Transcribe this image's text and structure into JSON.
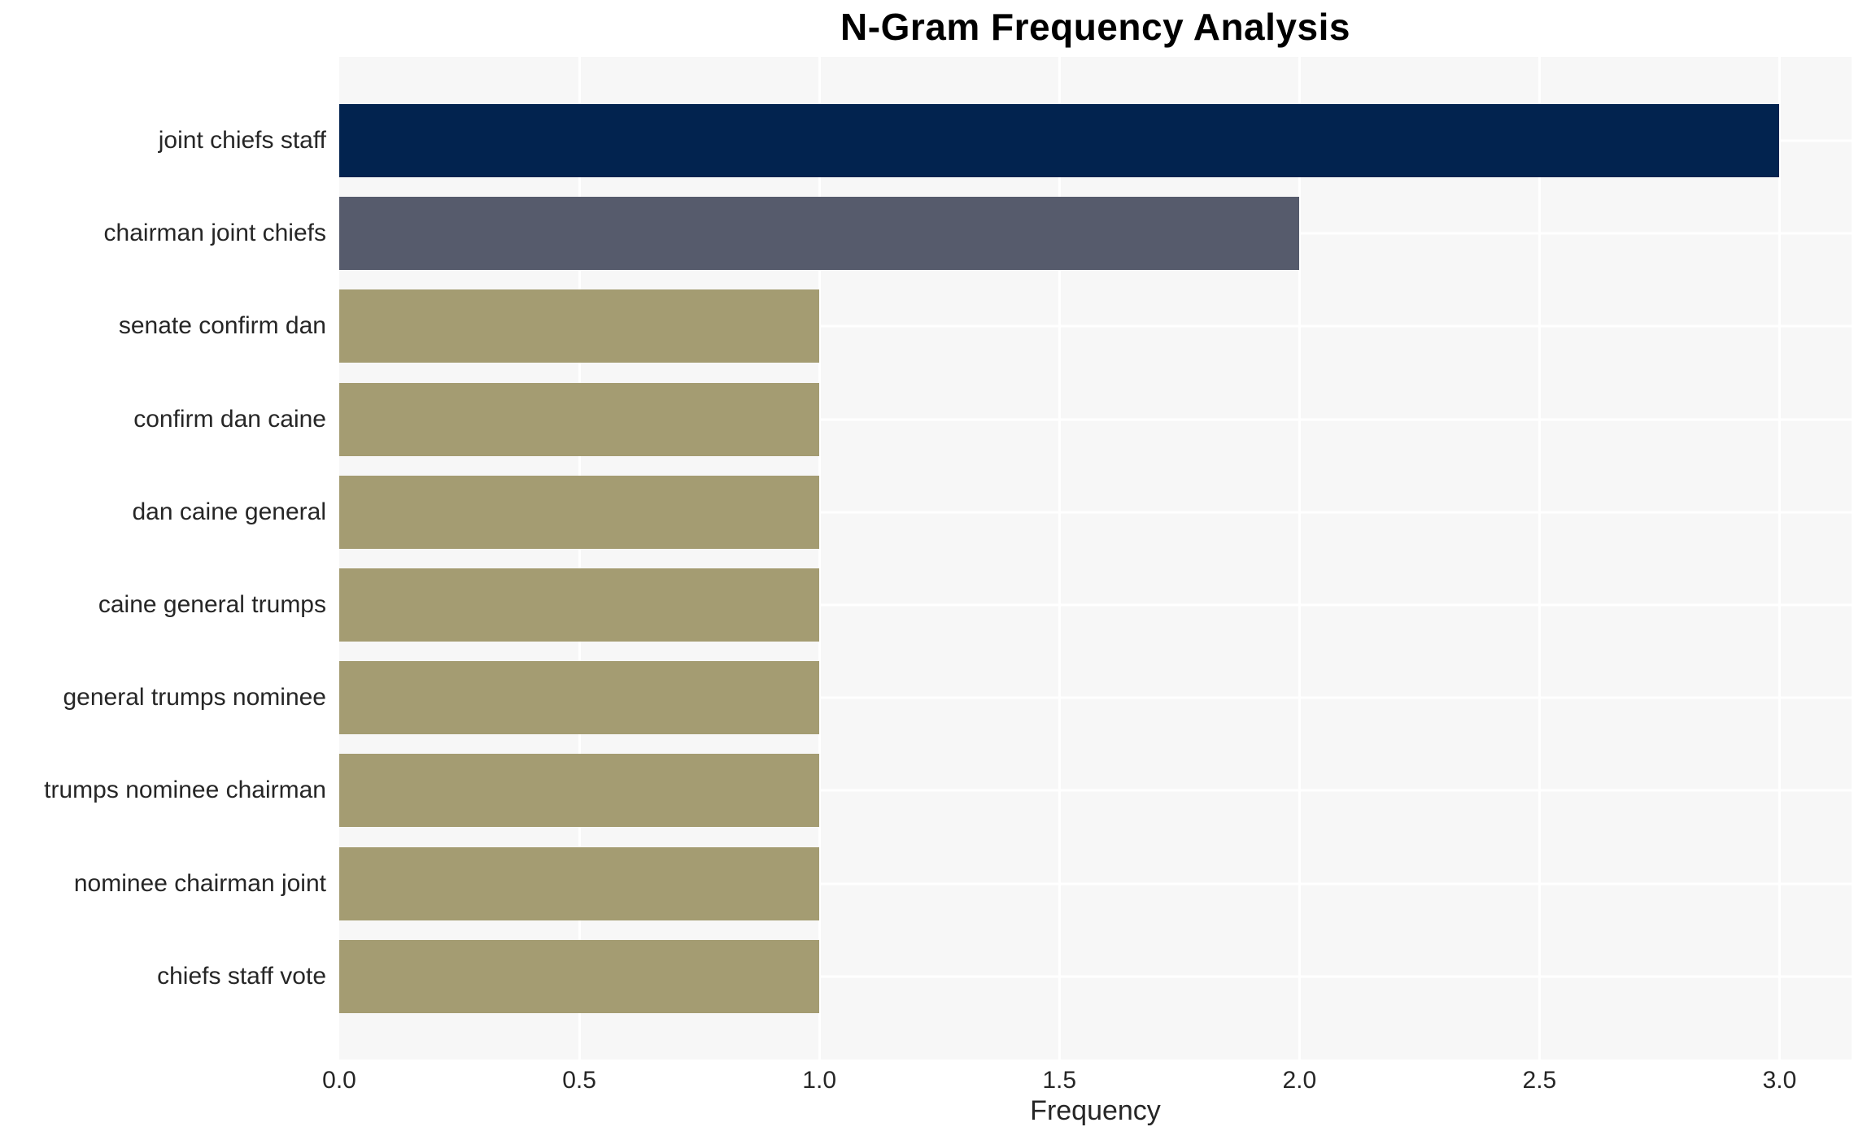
{
  "chart_data": {
    "type": "bar",
    "orientation": "horizontal",
    "title": "N-Gram Frequency Analysis",
    "xlabel": "Frequency",
    "ylabel": "",
    "categories": [
      "joint chiefs staff",
      "chairman joint chiefs",
      "senate confirm dan",
      "confirm dan caine",
      "dan caine general",
      "caine general trumps",
      "general trumps nominee",
      "trumps nominee chairman",
      "nominee chairman joint",
      "chiefs staff vote"
    ],
    "values": [
      3,
      2,
      1,
      1,
      1,
      1,
      1,
      1,
      1,
      1
    ],
    "bar_colors": [
      "#02234f",
      "#565b6c",
      "#a49c72",
      "#a49c72",
      "#a49c72",
      "#a49c72",
      "#a49c72",
      "#a49c72",
      "#a49c72",
      "#a49c72"
    ],
    "xlim": [
      0,
      3.15
    ],
    "xtick_values": [
      0,
      0.5,
      1,
      1.5,
      2,
      2.5,
      3
    ],
    "xtick_labels": [
      "0.0",
      "0.5",
      "1.0",
      "1.5",
      "2.0",
      "2.5",
      "3.0"
    ],
    "grid": true,
    "legend": false,
    "plot_background": "#f7f7f7",
    "grid_color": "#ffffff",
    "text_color": "#262626",
    "title_color": "#000000"
  }
}
